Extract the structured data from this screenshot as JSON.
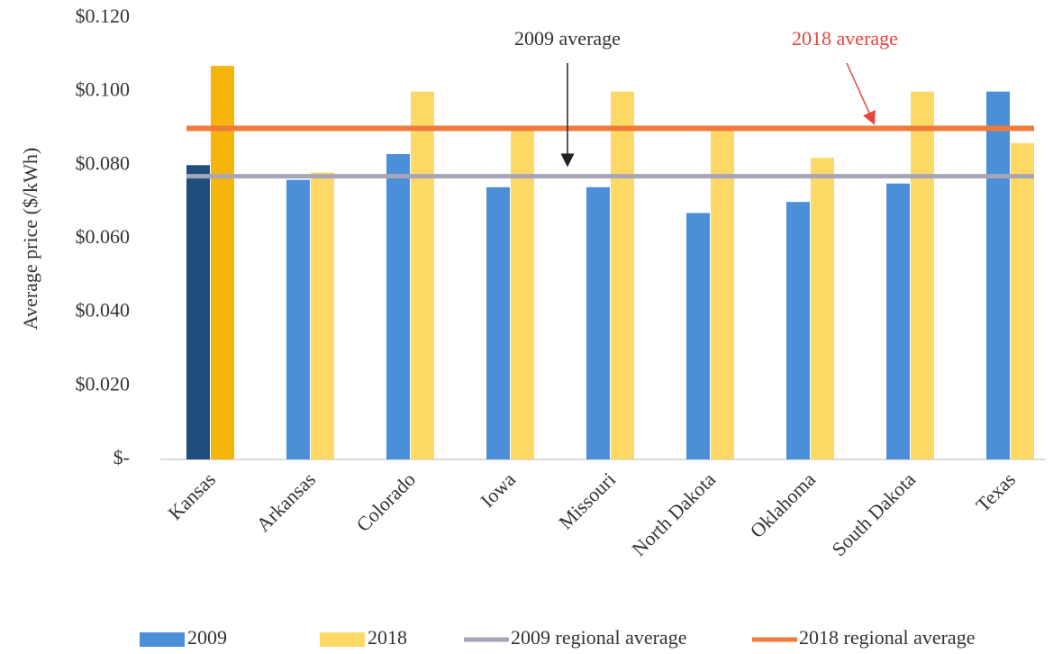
{
  "chart_data": {
    "type": "bar",
    "y_label": "Average price ($/kWh)",
    "categories": [
      "Kansas",
      "Arkansas",
      "Colorado",
      "Iowa",
      "Missouri",
      "North Dakota",
      "Oklahoma",
      "South Dakota",
      "Texas"
    ],
    "series": [
      {
        "name": "2009",
        "color": "#4a8fd8",
        "colors": [
          "#1f4e7c",
          "#4a8fd8",
          "#4a8fd8",
          "#4a8fd8",
          "#4a8fd8",
          "#4a8fd8",
          "#4a8fd8",
          "#4a8fd8",
          "#4a8fd8"
        ],
        "values": [
          0.08,
          0.076,
          0.083,
          0.074,
          0.074,
          0.067,
          0.07,
          0.075,
          0.1
        ]
      },
      {
        "name": "2018",
        "color": "#ffd966",
        "colors": [
          "#f5b50a",
          "#ffd966",
          "#ffd966",
          "#ffd966",
          "#ffd966",
          "#ffd966",
          "#ffd966",
          "#ffd966",
          "#ffd966"
        ],
        "values": [
          0.107,
          0.078,
          0.1,
          0.09,
          0.1,
          0.09,
          0.082,
          0.1,
          0.086
        ]
      }
    ],
    "reference_lines": [
      {
        "name": "2009 regional average",
        "color": "#a6a6b8",
        "value": 0.077
      },
      {
        "name": "2018 regional average",
        "color": "#f07a3a",
        "value": 0.09
      }
    ],
    "annotations": [
      {
        "text": "2009 average",
        "color": "#333333"
      },
      {
        "text": "2018 average",
        "color": "#e8453c"
      }
    ],
    "ylim": [
      0,
      0.12
    ],
    "yticks": [
      {
        "value": 0,
        "label": "$-"
      },
      {
        "value": 0.02,
        "label": "$0.020"
      },
      {
        "value": 0.04,
        "label": "$0.040"
      },
      {
        "value": 0.06,
        "label": "$0.060"
      },
      {
        "value": 0.08,
        "label": "$0.080"
      },
      {
        "value": 0.1,
        "label": "$0.100"
      },
      {
        "value": 0.12,
        "label": "$0.120"
      }
    ]
  }
}
